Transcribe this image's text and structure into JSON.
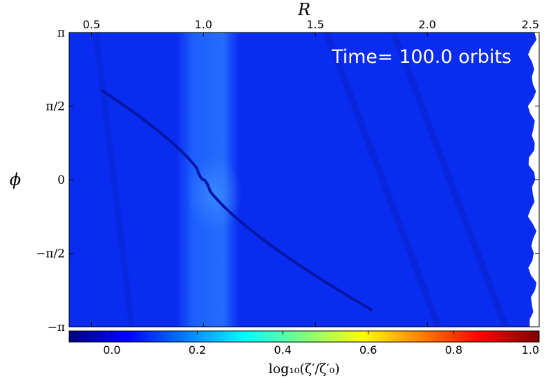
{
  "chart_data": {
    "type": "heatmap",
    "xlabel": "R",
    "ylabel": "ϕ",
    "xlim": [
      0.4,
      2.5
    ],
    "ylim": [
      -3.14159,
      3.14159
    ],
    "x_ticks": [
      {
        "value": 0.5,
        "label": "0.5"
      },
      {
        "value": 1.0,
        "label": "1.0"
      },
      {
        "value": 1.5,
        "label": "1.5"
      },
      {
        "value": 2.0,
        "label": "2.0"
      },
      {
        "value": 2.5,
        "label": "2.5"
      }
    ],
    "y_ticks": [
      {
        "value": 3.14159,
        "label": "π"
      },
      {
        "value": 1.5708,
        "label": "π/2"
      },
      {
        "value": 0,
        "label": "0"
      },
      {
        "value": -1.5708,
        "label": "−π/2"
      },
      {
        "value": -3.14159,
        "label": "−π"
      }
    ],
    "annotation": "Time= 100.0 orbits",
    "colorbar": {
      "label": "log₁₀(ζ′/ζ′₀)",
      "range": [
        -0.1,
        1.0
      ],
      "colormap": "jet",
      "ticks": [
        {
          "value": 0.0,
          "label": "0.0"
        },
        {
          "value": 0.2,
          "label": "0.2"
        },
        {
          "value": 0.4,
          "label": "0.4"
        },
        {
          "value": 0.6,
          "label": "0.6"
        },
        {
          "value": 0.8,
          "label": "0.8"
        },
        {
          "value": 1.0,
          "label": "1.0"
        }
      ]
    },
    "colors": {
      "background": "#0a2cf0",
      "ring_band": "#1f68ff",
      "spiral_wake": "#0416a6",
      "cavity": "#ffffff"
    }
  }
}
